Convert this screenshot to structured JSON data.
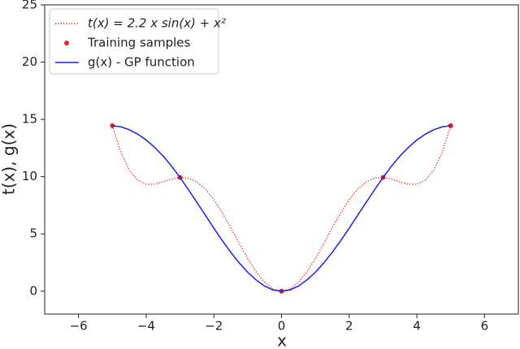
{
  "chart_data": {
    "type": "line",
    "xlabel": "x",
    "ylabel": "t(x), g(x)",
    "xlim": [
      -7,
      7
    ],
    "ylim": [
      -2,
      25
    ],
    "xticks": [
      {
        "value": -6,
        "label": "−6"
      },
      {
        "value": -4,
        "label": "−4"
      },
      {
        "value": -2,
        "label": "−2"
      },
      0,
      2,
      4,
      6
    ],
    "yticks": [
      0,
      5,
      10,
      15,
      20,
      25
    ],
    "legend": "upper left",
    "x": [
      -5,
      -4.75,
      -4.5,
      -4.25,
      -4,
      -3.75,
      -3.5,
      -3.25,
      -3,
      -2.75,
      -2.5,
      -2.25,
      -2,
      -1.75,
      -1.5,
      -1.25,
      -1,
      -0.75,
      -0.5,
      -0.25,
      0,
      0.25,
      0.5,
      0.75,
      1,
      1.25,
      1.5,
      1.75,
      2,
      2.25,
      2.5,
      2.75,
      3,
      3.25,
      3.5,
      3.75,
      4,
      4.25,
      4.5,
      4.75,
      5
    ],
    "series": [
      {
        "name": "t(x) = 2.2 x sin(x) + x²",
        "color": "#e8231f",
        "style": "dotted",
        "values": [
          14.451,
          12.12,
          10.573,
          9.694,
          9.34,
          9.347,
          9.549,
          9.789,
          9.931,
          9.872,
          9.542,
          8.914,
          8.001,
          6.851,
          5.542,
          4.172,
          2.851,
          1.687,
          0.777,
          0.199,
          0,
          0.199,
          0.777,
          1.687,
          2.851,
          4.172,
          5.542,
          6.851,
          8.001,
          8.914,
          9.542,
          9.872,
          9.931,
          9.789,
          9.549,
          9.347,
          9.34,
          9.694,
          10.573,
          12.12,
          14.451
        ]
      },
      {
        "name": "Training samples",
        "color": "#e8231f",
        "style": "points",
        "x": [
          -5,
          -3,
          0,
          3,
          5
        ],
        "values": [
          14.45,
          9.93,
          0,
          9.93,
          14.45
        ]
      },
      {
        "name": "g(x) - GP function",
        "color": "#1f1fe0",
        "style": "solid",
        "values": [
          14.45,
          14.35,
          14.1,
          13.71,
          13.2,
          12.56,
          11.8,
          10.92,
          9.93,
          8.86,
          7.75,
          6.63,
          5.5,
          4.42,
          3.4,
          2.47,
          1.65,
          0.98,
          0.45,
          0.11,
          0,
          0.11,
          0.45,
          0.98,
          1.65,
          2.47,
          3.4,
          4.42,
          5.5,
          6.63,
          7.75,
          8.86,
          9.93,
          10.92,
          11.8,
          12.56,
          13.2,
          13.71,
          14.1,
          14.35,
          14.45
        ]
      }
    ]
  }
}
